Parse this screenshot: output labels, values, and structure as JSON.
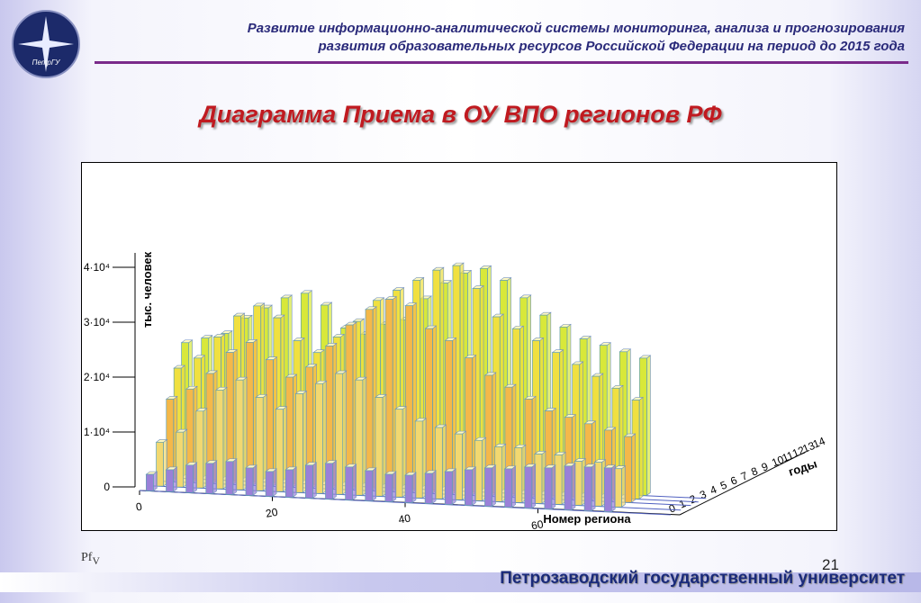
{
  "header": {
    "lines": [
      "Развитие информационно-аналитической системы мониторинга, анализа и прогнозирования",
      "развития образовательных ресурсов Российской Федерации на период до 2015 года"
    ]
  },
  "logo": {
    "label": "ПетрГУ"
  },
  "title": "Диаграмма Приема в ОУ ВПО регионов РФ",
  "chart_data": {
    "type": "bar3d",
    "y_label": "тыс. человек",
    "x_label": "Номер региона",
    "z_label": "годы",
    "x": [
      1,
      4,
      7,
      10,
      13,
      16,
      19,
      22,
      25,
      28,
      31,
      34,
      37,
      40,
      43,
      46,
      49,
      52,
      55,
      58,
      61,
      64,
      67,
      70
    ],
    "xlim": [
      0,
      80
    ],
    "xticks": [
      0,
      20,
      40,
      60
    ],
    "zlim": [
      0,
      14
    ],
    "zticks": [
      0,
      1,
      2,
      3,
      4,
      5,
      6,
      7,
      8,
      9,
      10,
      11,
      12,
      13,
      14
    ],
    "ylim": [
      0,
      40000
    ],
    "yticks": [
      0,
      {
        "value": 10000,
        "label": "1·10⁴"
      },
      {
        "value": 20000,
        "label": "2·10⁴"
      },
      {
        "value": 30000,
        "label": "3·10⁴"
      },
      {
        "value": 40000,
        "label": "4·10⁴"
      }
    ],
    "series": [
      {
        "z": 14,
        "color": "#d8e83a",
        "values": [
          24000,
          25000,
          26000,
          29000,
          31000,
          33000,
          34000,
          32000,
          28000,
          27000,
          29000,
          30000,
          34000,
          37000,
          39000,
          40000,
          38000,
          35000,
          32000,
          30000,
          28000,
          27000,
          26000,
          25000
        ]
      },
      {
        "z": 11,
        "color": "#f0e040",
        "values": [
          20000,
          22000,
          26000,
          30000,
          32000,
          30000,
          26000,
          24000,
          27000,
          30000,
          34000,
          36000,
          38000,
          40000,
          41000,
          37000,
          32000,
          30000,
          28000,
          26000,
          24000,
          22000,
          20000,
          18000
        ]
      },
      {
        "z": 8,
        "color": "#f4b84a",
        "values": [
          15000,
          17000,
          20000,
          24000,
          26000,
          23000,
          20000,
          22000,
          26000,
          30000,
          33000,
          35000,
          34000,
          30000,
          28000,
          25000,
          22000,
          20000,
          18000,
          16000,
          15000,
          14000,
          13000,
          12000
        ]
      },
      {
        "z": 4,
        "color": "#f2d870",
        "values": [
          8000,
          10000,
          14000,
          18000,
          20000,
          17000,
          15000,
          18000,
          20000,
          22000,
          21000,
          18000,
          16000,
          14000,
          13000,
          12000,
          11000,
          10000,
          10000,
          9000,
          9000,
          8000,
          8000,
          7000
        ]
      },
      {
        "z": 0,
        "color": "#9a80d8",
        "values": [
          3000,
          4000,
          5000,
          5500,
          6000,
          5000,
          4500,
          5000,
          6000,
          6500,
          6000,
          5500,
          5000,
          5000,
          5500,
          6000,
          6500,
          7000,
          7000,
          7500,
          7500,
          8000,
          8000,
          8000
        ]
      }
    ]
  },
  "note": {
    "base": "Pf",
    "sub": "V"
  },
  "page_number": "21",
  "footer": "Петрозаводский государственный университет"
}
